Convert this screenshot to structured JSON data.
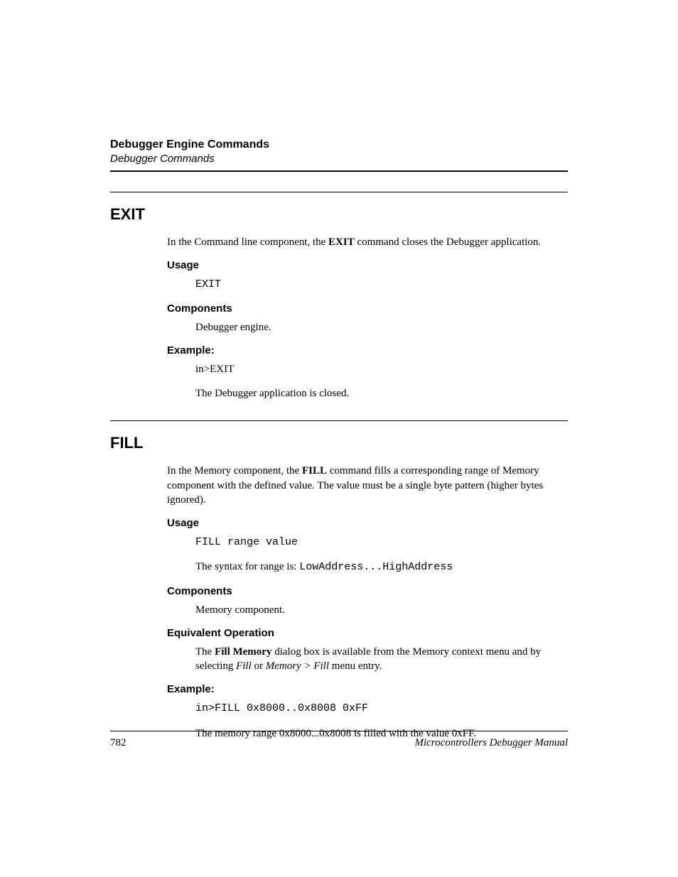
{
  "header": {
    "title": "Debugger Engine Commands",
    "subtitle": "Debugger Commands"
  },
  "sections": [
    {
      "key": "exit",
      "title": "EXIT",
      "intro_parts": [
        {
          "t": "In the Command line component, the "
        },
        {
          "t": "EXIT",
          "b": true
        },
        {
          "t": " command closes the Debugger application."
        }
      ],
      "blocks": [
        {
          "heading": "Usage",
          "lines": [
            {
              "parts": [
                {
                  "t": "EXIT",
                  "mono": true
                }
              ],
              "indent": true
            }
          ]
        },
        {
          "heading": "Components",
          "lines": [
            {
              "parts": [
                {
                  "t": "Debugger engine."
                }
              ],
              "indent": true
            }
          ]
        },
        {
          "heading": "Example:",
          "lines": [
            {
              "parts": [
                {
                  "t": "in>EXIT"
                }
              ],
              "indent": true
            },
            {
              "parts": [
                {
                  "t": "The Debugger application is closed."
                }
              ],
              "indent": true
            }
          ]
        }
      ]
    },
    {
      "key": "fill",
      "title": "FILL",
      "intro_parts": [
        {
          "t": "In the Memory component, the "
        },
        {
          "t": "FILL",
          "b": true
        },
        {
          "t": " command fills a corresponding range of Memory component with the defined value. The value must be a single byte pattern (higher bytes ignored)."
        }
      ],
      "blocks": [
        {
          "heading": "Usage",
          "lines": [
            {
              "parts": [
                {
                  "t": "FILL range value",
                  "mono": true
                }
              ],
              "indent": true
            },
            {
              "parts": [
                {
                  "t": "The syntax for range is: "
                },
                {
                  "t": "LowAddress...HighAddress",
                  "mono": true
                }
              ],
              "indent": true
            }
          ]
        },
        {
          "heading": "Components",
          "lines": [
            {
              "parts": [
                {
                  "t": "Memory component."
                }
              ],
              "indent": true
            }
          ]
        },
        {
          "heading": "Equivalent Operation",
          "lines": [
            {
              "parts": [
                {
                  "t": "The "
                },
                {
                  "t": "Fill Memory",
                  "b": true
                },
                {
                  "t": " dialog box is available from the Memory context menu and by selecting "
                },
                {
                  "t": "Fill",
                  "i": true
                },
                {
                  "t": " or "
                },
                {
                  "t": "Memory > Fill",
                  "i": true
                },
                {
                  "t": " menu entry."
                }
              ],
              "indent": true
            }
          ]
        },
        {
          "heading": "Example:",
          "lines": [
            {
              "parts": [
                {
                  "t": "in>FILL 0x8000..0x8008 0xFF",
                  "mono": true
                }
              ],
              "indent": true
            },
            {
              "parts": [
                {
                  "t": "The memory range 0x8000...0x8008 is filled with the value 0xFF."
                }
              ],
              "indent": true
            }
          ]
        }
      ]
    }
  ],
  "footer": {
    "page_number": "782",
    "manual_title": "Microcontrollers Debugger Manual"
  },
  "style": {
    "page_bg": "#ffffff",
    "text_color": "#000000",
    "rule_color": "#000000",
    "body_font": "Times New Roman",
    "heading_font": "Arial",
    "cmd_title_fontsize": 22,
    "subhead_fontsize": 15,
    "body_fontsize": 15,
    "mono_font": "Courier New"
  }
}
